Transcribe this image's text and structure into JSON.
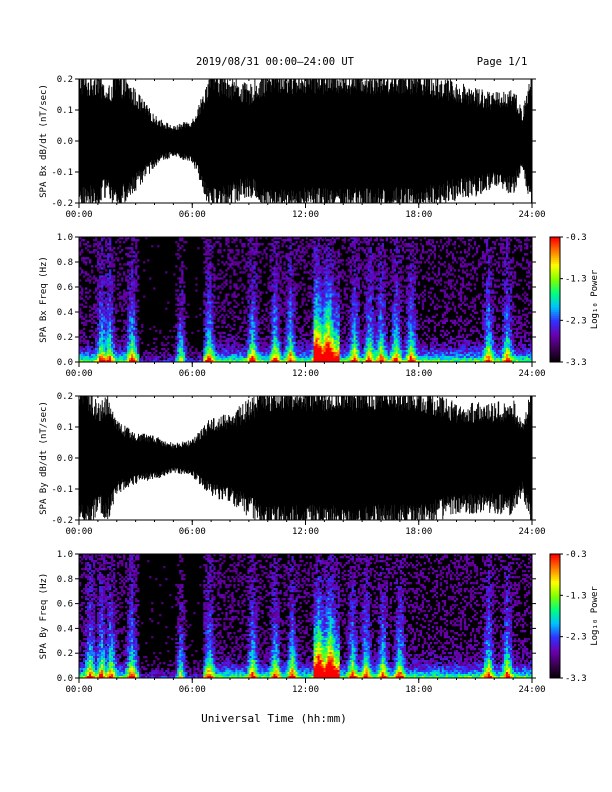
{
  "header": {
    "title": "2019/08/31   00:00–24:00 UT",
    "page_label": "Page 1/1"
  },
  "colors": {
    "trace": "#000000",
    "background": "#ffffff",
    "colorscale": [
      "#000000",
      "#3a0050",
      "#6a00b0",
      "#3030ff",
      "#00c0ff",
      "#00ff80",
      "#80ff00",
      "#ffff00",
      "#ff8000",
      "#ff0000"
    ]
  },
  "chart_data": [
    {
      "type": "line",
      "panel": "Bx waveform",
      "ylabel": "SPA Bx dB/dt (nT/sec)",
      "xlabel": "",
      "x_ticks": [
        "00:00",
        "06:00",
        "12:00",
        "18:00",
        "24:00"
      ],
      "y_ticks": [
        "0.2",
        "0.1",
        "0.0",
        "-0.1",
        "-0.2"
      ],
      "xlim": [
        0,
        24
      ],
      "ylim": [
        -0.2,
        0.2
      ],
      "envelope": {
        "x_hours": [
          0,
          0.5,
          1,
          1.5,
          2,
          3,
          4,
          5,
          6,
          6.5,
          7,
          8,
          9,
          10,
          11,
          12,
          13,
          14,
          15,
          16,
          17,
          18,
          19,
          20,
          21,
          22,
          23,
          23.5,
          24
        ],
        "amplitude": [
          0.2,
          0.18,
          0.2,
          0.14,
          0.2,
          0.14,
          0.07,
          0.04,
          0.06,
          0.12,
          0.2,
          0.18,
          0.15,
          0.2,
          0.2,
          0.2,
          0.2,
          0.2,
          0.2,
          0.2,
          0.2,
          0.2,
          0.18,
          0.16,
          0.15,
          0.13,
          0.15,
          0.08,
          0.2
        ]
      }
    },
    {
      "type": "heatmap",
      "panel": "Bx spectrogram",
      "ylabel": "SPA Bx Freq (Hz)",
      "xlabel": "",
      "x_ticks": [
        "00:00",
        "06:00",
        "12:00",
        "18:00",
        "24:00"
      ],
      "y_ticks": [
        "1.0",
        "0.8",
        "0.6",
        "0.4",
        "0.2",
        "0.0"
      ],
      "xlim": [
        0,
        24
      ],
      "ylim": [
        0,
        1
      ],
      "colorbar": {
        "label": "Log₁₀ Power",
        "ticks": [
          "-0.3",
          "-1.3",
          "-2.3",
          "-3.3"
        ],
        "range": [
          -3.3,
          -0.3
        ]
      },
      "activity_bursts_hours": [
        1.2,
        1.6,
        2.8,
        5.4,
        6.9,
        9.2,
        10.4,
        11.2,
        12.6,
        13.2,
        14.6,
        15.4,
        16.0,
        16.8,
        17.6,
        21.7,
        22.7
      ]
    },
    {
      "type": "line",
      "panel": "By waveform",
      "ylabel": "SPA By dB/dt (nT/sec)",
      "xlabel": "",
      "x_ticks": [
        "00:00",
        "06:00",
        "12:00",
        "18:00",
        "24:00"
      ],
      "y_ticks": [
        "0.2",
        "0.1",
        "0.0",
        "-0.1",
        "-0.2"
      ],
      "xlim": [
        0,
        24
      ],
      "ylim": [
        -0.2,
        0.2
      ],
      "envelope": {
        "x_hours": [
          0,
          0.5,
          1,
          1.5,
          2,
          3,
          4,
          5,
          6,
          6.5,
          7,
          8,
          9,
          10,
          11,
          12,
          13,
          14,
          15,
          16,
          17,
          18,
          19,
          20,
          21,
          22,
          23,
          23.5,
          24
        ],
        "amplitude": [
          0.2,
          0.2,
          0.15,
          0.18,
          0.1,
          0.07,
          0.06,
          0.04,
          0.05,
          0.08,
          0.11,
          0.12,
          0.16,
          0.2,
          0.2,
          0.2,
          0.2,
          0.2,
          0.2,
          0.2,
          0.2,
          0.2,
          0.17,
          0.15,
          0.15,
          0.15,
          0.16,
          0.1,
          0.2
        ]
      }
    },
    {
      "type": "heatmap",
      "panel": "By spectrogram",
      "ylabel": "SPA By Freq (Hz)",
      "xlabel": "Universal Time (hh:mm)",
      "x_ticks": [
        "00:00",
        "06:00",
        "12:00",
        "18:00",
        "24:00"
      ],
      "y_ticks": [
        "1.0",
        "0.8",
        "0.6",
        "0.4",
        "0.2",
        "0.0"
      ],
      "xlim": [
        0,
        24
      ],
      "ylim": [
        0,
        1
      ],
      "colorbar": {
        "label": "Log₁₀ Power",
        "ticks": [
          "-0.3",
          "-1.3",
          "-2.3",
          "-3.3"
        ],
        "range": [
          -3.3,
          -0.3
        ]
      },
      "activity_bursts_hours": [
        0.6,
        1.2,
        1.7,
        2.8,
        5.4,
        6.9,
        9.2,
        10.4,
        11.3,
        12.7,
        13.3,
        14.5,
        15.2,
        16.1,
        17.0,
        21.7,
        22.7
      ]
    }
  ]
}
